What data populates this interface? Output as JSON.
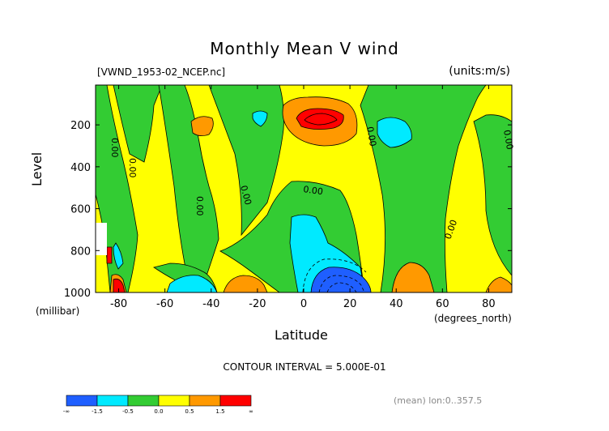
{
  "title": "Monthly Mean V wind",
  "subtitle_left": "[VWND_1953-02_NCEP.nc]",
  "subtitle_right": "(units:m/s)",
  "contour_note": "CONTOUR INTERVAL = 5.000E-01",
  "stat_note": "(mean) lon:0..357.5",
  "chart_data": {
    "type": "heatmap",
    "title": "Monthly Mean V wind",
    "xlabel": "Latitude",
    "xunit": "(degrees_north)",
    "ylabel": "Level",
    "yunit": "(millibar)",
    "xlim": [
      -90,
      90
    ],
    "ylim": [
      1000,
      10
    ],
    "y_scale": "linear, inverted",
    "xticks": [
      -80,
      -60,
      -40,
      -20,
      0,
      20,
      40,
      60,
      80
    ],
    "xtick_labels": [
      "-80",
      "-60",
      "-40",
      "-20",
      "0",
      "20",
      "40",
      "60",
      "80"
    ],
    "yticks": [
      200,
      400,
      600,
      800,
      1000
    ],
    "ytick_labels": [
      "200",
      "400",
      "600",
      "800",
      "1000"
    ],
    "contour_interval": 0.5,
    "contour_label_text": "0.00",
    "colorbar": {
      "ticks": [
        "-∞",
        "-1.5",
        "-0.5",
        "0.0",
        "0.5",
        "1.5",
        "∞"
      ],
      "colors": [
        "#1f5fff",
        "#00eaff",
        "#33cc33",
        "#ffff00",
        "#ff9900",
        "#ff0000"
      ]
    },
    "regions": [
      {
        "value_range": "0.5 to 1.5",
        "color": "#ff9900",
        "lat_range": [
          2,
          22
        ],
        "level_range": [
          90,
          280
        ]
      },
      {
        "value_range": "> 1.5",
        "color": "#ff0000",
        "lat_range": [
          6,
          18
        ],
        "level_range": [
          120,
          190
        ]
      },
      {
        "value_range": "-1.5 to -0.5",
        "color": "#00eaff",
        "lat_range": [
          0,
          26
        ],
        "level_range": [
          640,
          1000
        ]
      },
      {
        "value_range": "< -1.5",
        "color": "#1f5fff",
        "lat_range": [
          4,
          26
        ],
        "level_range": [
          860,
          1000
        ]
      },
      {
        "value_range": "-1.5 to -0.5",
        "color": "#00eaff",
        "lat_range": [
          28,
          42
        ],
        "level_range": [
          170,
          260
        ]
      },
      {
        "value_range": "-1.5 to -0.5",
        "color": "#00eaff",
        "lat_range": [
          -62,
          -42
        ],
        "level_range": [
          900,
          1000
        ]
      },
      {
        "value_range": "0.5 to 1.5",
        "color": "#ff9900",
        "lat_range": [
          -38,
          -22
        ],
        "level_range": [
          150,
          250
        ]
      }
    ]
  }
}
